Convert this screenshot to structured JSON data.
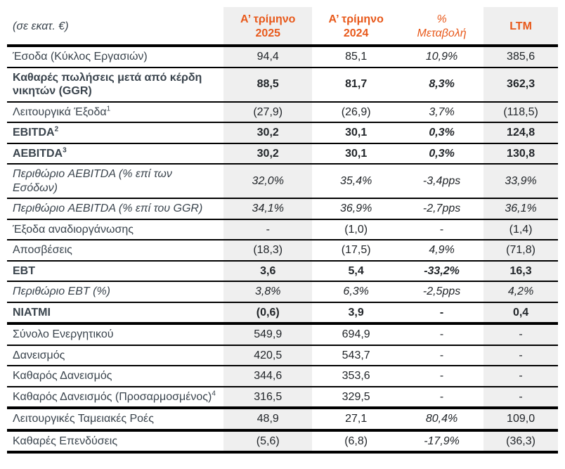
{
  "colors": {
    "accent_orange": "#e8591b",
    "shaded_col_bg": "#efefef",
    "label_text": "#3a444d",
    "number_text": "#22262a"
  },
  "table": {
    "columns": [
      {
        "id": "label",
        "label": "(σε εκατ. €)"
      },
      {
        "id": "q1_2025",
        "line1": "Α’ τρίμηνο",
        "line2": "2025",
        "shaded": true
      },
      {
        "id": "q1_2024",
        "line1": "Α’ τρίμηνο",
        "line2": "2024",
        "shaded": false
      },
      {
        "id": "pct_change",
        "line1": "%",
        "line2": "Μεταβολή",
        "italic": true
      },
      {
        "id": "ltm",
        "label": "LTM",
        "shaded": true
      }
    ],
    "rows": [
      {
        "label": "Έσοδα (Κύκλος Εργασιών)",
        "values": [
          "94,4",
          "85,1",
          "10,9%",
          "385,6"
        ],
        "pct_italic": true
      },
      {
        "label": "Καθαρές πωλήσεις μετά από κέρδη νικητών (GGR)",
        "bold": true,
        "values": [
          "88,5",
          "81,7",
          "8,3%",
          "362,3"
        ],
        "pct_italic": true
      },
      {
        "label": "Λειτουργικά Έξοδα",
        "sup": "1",
        "values": [
          "(27,9)",
          "(26,9)",
          "3,7%",
          "(118,5)"
        ],
        "pct_italic": true
      },
      {
        "label": "EBITDA",
        "sup": "2",
        "bold": true,
        "values": [
          "30,2",
          "30,1",
          "0,3%",
          "124,8"
        ],
        "pct_italic": true
      },
      {
        "label": "AEBITDA",
        "sup": "3",
        "bold": true,
        "values": [
          "30,2",
          "30,1",
          "0,3%",
          "130,8"
        ],
        "pct_italic": true
      },
      {
        "label": "Περιθώριο AEBITDA (% επί των Εσόδων)",
        "italic": true,
        "values": [
          "32,0%",
          "35,4%",
          "-3,4pps",
          "33,9%"
        ]
      },
      {
        "label": "Περιθώριο AEBITDA (% επί του GGR)",
        "italic": true,
        "values": [
          "34,1%",
          "36,9%",
          "-2,7pps",
          "36,1%"
        ]
      },
      {
        "label": "Έξοδα αναδιοργάνωσης",
        "values": [
          "-",
          "(1,0)",
          "-",
          "(1,4)"
        ]
      },
      {
        "label": "Αποσβέσεις",
        "values": [
          "(18,3)",
          "(17,5)",
          "4,9%",
          "(71,8)"
        ],
        "pct_italic": true
      },
      {
        "label": "EBT",
        "bold": true,
        "values": [
          "3,6",
          "5,4",
          "-33,2%",
          "16,3"
        ],
        "pct_italic": true
      },
      {
        "label": "Περιθώριο EBT (%)",
        "italic": true,
        "values": [
          "3,8%",
          "6,3%",
          "-2,5pps",
          "4,2%"
        ]
      },
      {
        "label": "NIATMI",
        "bold": true,
        "values": [
          "(0,6)",
          "3,9",
          "-",
          "0,4"
        ],
        "section_end": true
      },
      {
        "label": "Σύνολο Ενεργητικού",
        "values": [
          "549,9",
          "694,9",
          "-",
          "-"
        ]
      },
      {
        "label": "Δανεισμός",
        "values": [
          "420,5",
          "543,7",
          "-",
          "-"
        ]
      },
      {
        "label": "Καθαρός Δανεισμός",
        "values": [
          "344,6",
          "353,6",
          "-",
          "-"
        ]
      },
      {
        "label": "Καθαρός Δανεισμός (Προσαρμοσμένος)",
        "sup": "4",
        "values": [
          "316,5",
          "329,5",
          "-",
          "-"
        ],
        "section_end": true
      },
      {
        "label": "Λειτουργικές Ταμειακές Ροές",
        "values": [
          "48,9",
          "27,1",
          "80,4%",
          "109,0"
        ],
        "pct_italic": true,
        "section_end": true
      },
      {
        "label": "Καθαρές Επενδύσεις",
        "values": [
          "(5,6)",
          "(6,8)",
          "-17,9%",
          "(36,3)"
        ],
        "pct_italic": true,
        "section_end": true
      }
    ]
  }
}
